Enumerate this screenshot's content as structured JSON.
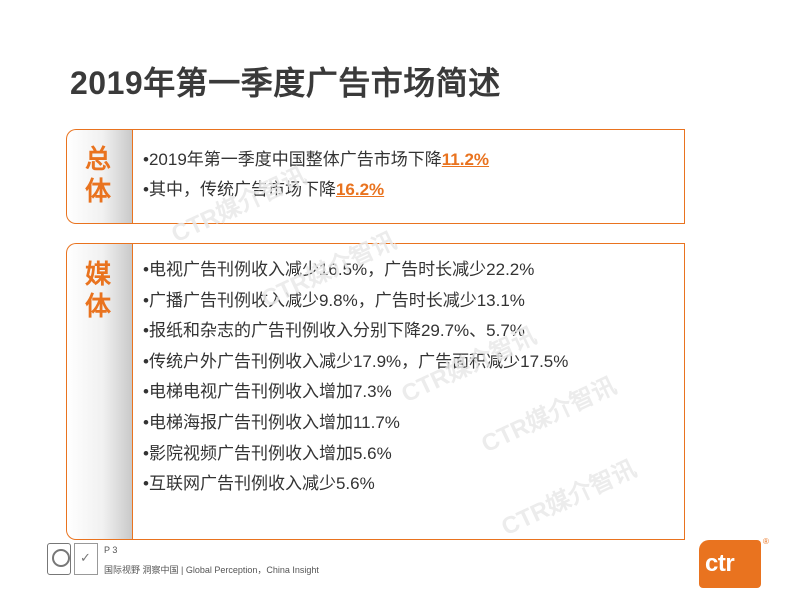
{
  "title": "2019年第一季度广告市场简述",
  "summary": {
    "tab_label_1": "总",
    "tab_label_2": "体",
    "bullets": [
      {
        "text": "•2019年第一季度中国整体广告市场下降",
        "highlight": "11.2%"
      },
      {
        "text": "•其中，传统广告市场下降",
        "highlight": "16.2%"
      }
    ]
  },
  "media": {
    "tab_label_1": "媒",
    "tab_label_2": "体",
    "bullets": [
      "•电视广告刊例收入减少16.5%，广告时长减少22.2%",
      "•广播广告刊例收入减少9.8%，广告时长减少13.1%",
      "•报纸和杂志的广告刊例收入分别下降29.7%、5.7%",
      "•传统户外广告刊例收入减少17.9%，广告面积减少17.5%",
      "•电梯电视广告刊例收入增加7.3%",
      "•电梯海报广告刊例收入增加11.7%",
      "•影院视频广告刊例收入增加5.6%",
      "•互联网广告刊例收入减少5.6%"
    ]
  },
  "watermark": "CTR媒介智讯",
  "footer": {
    "page": "P 3",
    "tagline": "国际视野 洞察中国 | Global Perception，China Insight"
  },
  "brand": {
    "logo_text": "ctr",
    "reg_mark": "®",
    "color": "#e9731f"
  },
  "colors": {
    "accent": "#e9731f",
    "text": "#333333",
    "title": "#3a3a3a"
  }
}
